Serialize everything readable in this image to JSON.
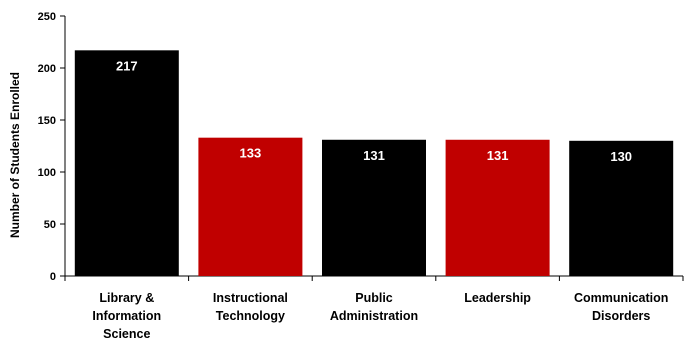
{
  "chart_data": {
    "type": "bar",
    "title": "",
    "xlabel": "",
    "ylabel": "Number of Students Enrolled",
    "ylim": [
      0,
      250
    ],
    "yticks": [
      0,
      50,
      100,
      150,
      200,
      250
    ],
    "grid": false,
    "legend": "none",
    "categories": [
      [
        "Library &",
        "Information",
        "Science"
      ],
      [
        "Instructional",
        "Technology"
      ],
      [
        "Public",
        "Administration"
      ],
      [
        "Leadership"
      ],
      [
        "Communication",
        "Disorders"
      ]
    ],
    "values": [
      217,
      133,
      131,
      131,
      130
    ],
    "bar_colors": [
      "#000000",
      "#c00000",
      "#000000",
      "#c00000",
      "#000000"
    ],
    "data_labels": [
      "217",
      "133",
      "131",
      "131",
      "130"
    ]
  }
}
